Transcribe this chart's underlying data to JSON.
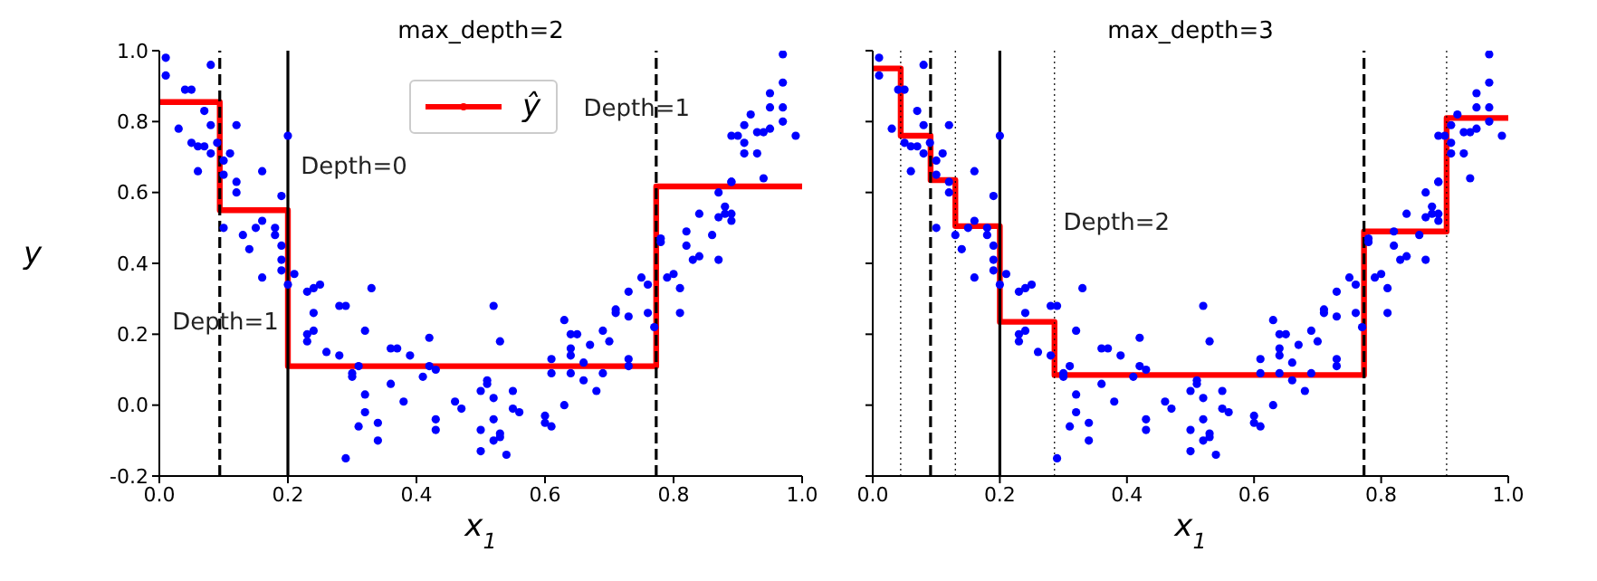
{
  "chart_data": [
    {
      "type": "scatter",
      "title": "max_depth=2",
      "xlabel": "x$_{1}$",
      "ylabel": "y",
      "xlim": [
        0,
        1
      ],
      "xticks": [
        {
          "value": 0,
          "label": "0.0"
        },
        {
          "value": 0.2,
          "label": "0.2"
        },
        {
          "value": 0.4,
          "label": "0.4"
        },
        {
          "value": 0.6,
          "label": "0.6"
        },
        {
          "value": 0.8,
          "label": "0.8"
        },
        {
          "value": 1,
          "label": "1.0"
        }
      ],
      "ylim": [
        -0.2,
        1
      ],
      "yticks": [
        {
          "value": -0.2,
          "label": "-0.2"
        },
        {
          "value": 0,
          "label": "0.0"
        },
        {
          "value": 0.2,
          "label": "0.2"
        },
        {
          "value": 0.4,
          "label": "0.4"
        },
        {
          "value": 0.6,
          "label": "0.6"
        },
        {
          "value": 0.8,
          "label": "0.8"
        },
        {
          "value": 1,
          "label": "1.0"
        }
      ],
      "legend": "top",
      "series": [
        {
          "marker": "circle",
          "color": "#0000ff",
          "x": [
            0.01,
            0.01,
            0.08,
            0.03,
            0.04,
            0.05,
            0.07,
            0.08,
            0.05,
            0.06,
            0.06,
            0.07,
            0.08,
            0.1,
            0.09,
            0.12,
            0.11,
            0.1,
            0.12,
            0.12,
            0.16,
            0.19,
            0.2,
            0.1,
            0.13,
            0.16,
            0.15,
            0.18,
            0.18,
            0.14,
            0.16,
            0.19,
            0.19,
            0.19,
            0.2,
            0.21,
            0.23,
            0.24,
            0.25,
            0.24,
            0.23,
            0.24,
            0.23,
            0.26,
            0.28,
            0.29,
            0.28,
            0.3,
            0.31,
            0.3,
            0.32,
            0.32,
            0.31,
            0.34,
            0.34,
            0.36,
            0.37,
            0.36,
            0.38,
            0.39,
            0.32,
            0.33,
            0.29,
            0.42,
            0.41,
            0.42,
            0.43,
            0.43,
            0.43,
            0.46,
            0.47,
            0.5,
            0.5,
            0.5,
            0.51,
            0.51,
            0.52,
            0.53,
            0.52,
            0.52,
            0.53,
            0.53,
            0.52,
            0.54,
            0.55,
            0.55,
            0.56,
            0.6,
            0.6,
            0.61,
            0.61,
            0.61,
            0.63,
            0.64,
            0.64,
            0.63,
            0.64,
            0.65,
            0.64,
            0.66,
            0.66,
            0.67,
            0.68,
            0.69,
            0.69,
            0.7,
            0.71,
            0.71,
            0.73,
            0.73,
            0.73,
            0.73,
            0.75,
            0.76,
            0.76,
            0.77,
            0.78,
            0.78,
            0.79,
            0.8,
            0.81,
            0.81,
            0.82,
            0.82,
            0.83,
            0.84,
            0.84,
            0.86,
            0.87,
            0.87,
            0.88,
            0.88,
            0.89,
            0.89,
            0.89,
            0.9,
            0.91,
            0.91,
            0.91,
            0.92,
            0.93,
            0.94,
            0.94,
            0.93,
            0.95,
            0.95,
            0.95,
            0.97,
            0.97,
            0.97,
            0.97,
            0.99,
            0.87,
            0.89,
            0.89
          ],
          "values": [
            0.98,
            0.93,
            0.96,
            0.78,
            0.89,
            0.89,
            0.83,
            0.79,
            0.74,
            0.73,
            0.66,
            0.73,
            0.71,
            0.69,
            0.74,
            0.79,
            0.71,
            0.65,
            0.63,
            0.6,
            0.66,
            0.59,
            0.76,
            0.5,
            0.48,
            0.52,
            0.5,
            0.5,
            0.48,
            0.44,
            0.36,
            0.45,
            0.41,
            0.38,
            0.34,
            0.37,
            0.32,
            0.33,
            0.34,
            0.26,
            0.2,
            0.21,
            0.18,
            0.15,
            0.28,
            0.28,
            0.14,
            0.08,
            0.11,
            0.09,
            0.03,
            -0.02,
            -0.06,
            -0.05,
            -0.1,
            0.16,
            0.16,
            0.06,
            0.01,
            0.14,
            0.21,
            0.33,
            -0.15,
            0.19,
            0.08,
            0.11,
            0.1,
            -0.04,
            -0.07,
            0.01,
            -0.01,
            0.04,
            -0.07,
            -0.13,
            0.06,
            0.07,
            0.28,
            0.18,
            0.02,
            -0.04,
            -0.09,
            -0.08,
            -0.1,
            -0.14,
            0.04,
            -0.01,
            -0.02,
            -0.03,
            -0.05,
            -0.06,
            0.09,
            0.13,
            0.0,
            0.14,
            0.09,
            0.24,
            0.2,
            0.2,
            0.16,
            0.07,
            0.12,
            0.17,
            0.04,
            0.09,
            0.21,
            0.18,
            0.26,
            0.27,
            0.13,
            0.11,
            0.25,
            0.32,
            0.36,
            0.34,
            0.26,
            0.22,
            0.46,
            0.47,
            0.36,
            0.37,
            0.33,
            0.26,
            0.49,
            0.45,
            0.41,
            0.42,
            0.54,
            0.48,
            0.53,
            0.41,
            0.56,
            0.54,
            0.52,
            0.54,
            0.76,
            0.76,
            0.74,
            0.71,
            0.79,
            0.82,
            0.77,
            0.77,
            0.64,
            0.71,
            0.78,
            0.84,
            0.88,
            0.91,
            0.8,
            0.84,
            0.99,
            0.76,
            0.6,
            0.63,
            0.63
          ]
        },
        {
          "type": "step",
          "name": "ŷ",
          "marker": "none",
          "color": "#ff0000",
          "x": [
            0,
            0.094,
            0.2,
            0.773,
            1
          ],
          "values": [
            0.855,
            0.55,
            0.11,
            0.617,
            0.617
          ]
        }
      ],
      "ref_lines": [
        {
          "axis": "x",
          "value": 0.2,
          "color": "#000000",
          "line_style": "solid"
        },
        {
          "axis": "x",
          "value": 0.094,
          "color": "#000000",
          "line_style": "dashed"
        },
        {
          "axis": "x",
          "value": 0.773,
          "color": "#000000",
          "line_style": "dashed"
        }
      ],
      "annotations": [
        "Depth=0",
        "Depth=1",
        "Depth=1"
      ]
    },
    {
      "type": "scatter",
      "title": "max_depth=3",
      "xlabel": "x$_{1}$",
      "xlim": [
        0,
        1
      ],
      "xticks": [
        {
          "value": 0,
          "label": "0.0"
        },
        {
          "value": 0.2,
          "label": "0.2"
        },
        {
          "value": 0.4,
          "label": "0.4"
        },
        {
          "value": 0.6,
          "label": "0.6"
        },
        {
          "value": 0.8,
          "label": "0.8"
        },
        {
          "value": 1,
          "label": "1.0"
        }
      ],
      "ylim": [
        -0.2,
        1
      ],
      "yticks": [
        {
          "value": -0.2,
          "label": null
        },
        {
          "value": 0,
          "label": null
        },
        {
          "value": 0.2,
          "label": null
        },
        {
          "value": 0.4,
          "label": null
        },
        {
          "value": 0.6,
          "label": null
        },
        {
          "value": 0.8,
          "label": null
        },
        {
          "value": 1,
          "label": null
        }
      ],
      "tick_labels": "x",
      "series": [
        {
          "marker": "circle",
          "color": "#0000ff",
          "x": [
            0.01,
            0.01,
            0.08,
            0.03,
            0.04,
            0.05,
            0.07,
            0.08,
            0.05,
            0.06,
            0.06,
            0.07,
            0.08,
            0.1,
            0.09,
            0.12,
            0.11,
            0.1,
            0.12,
            0.12,
            0.16,
            0.19,
            0.2,
            0.1,
            0.13,
            0.16,
            0.15,
            0.18,
            0.18,
            0.14,
            0.16,
            0.19,
            0.19,
            0.19,
            0.2,
            0.21,
            0.23,
            0.24,
            0.25,
            0.24,
            0.23,
            0.24,
            0.23,
            0.26,
            0.28,
            0.29,
            0.28,
            0.3,
            0.31,
            0.3,
            0.32,
            0.32,
            0.31,
            0.34,
            0.34,
            0.36,
            0.37,
            0.36,
            0.38,
            0.39,
            0.32,
            0.33,
            0.29,
            0.42,
            0.41,
            0.42,
            0.43,
            0.43,
            0.43,
            0.46,
            0.47,
            0.5,
            0.5,
            0.5,
            0.51,
            0.51,
            0.52,
            0.53,
            0.52,
            0.52,
            0.53,
            0.53,
            0.52,
            0.54,
            0.55,
            0.55,
            0.56,
            0.6,
            0.6,
            0.61,
            0.61,
            0.61,
            0.63,
            0.64,
            0.64,
            0.63,
            0.64,
            0.65,
            0.64,
            0.66,
            0.66,
            0.67,
            0.68,
            0.69,
            0.69,
            0.7,
            0.71,
            0.71,
            0.73,
            0.73,
            0.73,
            0.73,
            0.75,
            0.76,
            0.76,
            0.77,
            0.78,
            0.78,
            0.79,
            0.8,
            0.81,
            0.81,
            0.82,
            0.82,
            0.83,
            0.84,
            0.84,
            0.86,
            0.87,
            0.87,
            0.88,
            0.88,
            0.89,
            0.89,
            0.89,
            0.9,
            0.91,
            0.91,
            0.91,
            0.92,
            0.93,
            0.94,
            0.94,
            0.93,
            0.95,
            0.95,
            0.95,
            0.97,
            0.97,
            0.97,
            0.97,
            0.99,
            0.87,
            0.89,
            0.89
          ],
          "values": [
            0.98,
            0.93,
            0.96,
            0.78,
            0.89,
            0.89,
            0.83,
            0.79,
            0.74,
            0.73,
            0.66,
            0.73,
            0.71,
            0.69,
            0.74,
            0.79,
            0.71,
            0.65,
            0.63,
            0.6,
            0.66,
            0.59,
            0.76,
            0.5,
            0.48,
            0.52,
            0.5,
            0.5,
            0.48,
            0.44,
            0.36,
            0.45,
            0.41,
            0.38,
            0.34,
            0.37,
            0.32,
            0.33,
            0.34,
            0.26,
            0.2,
            0.21,
            0.18,
            0.15,
            0.28,
            0.28,
            0.14,
            0.08,
            0.11,
            0.09,
            0.03,
            -0.02,
            -0.06,
            -0.05,
            -0.1,
            0.16,
            0.16,
            0.06,
            0.01,
            0.14,
            0.21,
            0.33,
            -0.15,
            0.19,
            0.08,
            0.11,
            0.1,
            -0.04,
            -0.07,
            0.01,
            -0.01,
            0.04,
            -0.07,
            -0.13,
            0.06,
            0.07,
            0.28,
            0.18,
            0.02,
            -0.04,
            -0.09,
            -0.08,
            -0.1,
            -0.14,
            0.04,
            -0.01,
            -0.02,
            -0.03,
            -0.05,
            -0.06,
            0.09,
            0.13,
            0.0,
            0.14,
            0.09,
            0.24,
            0.2,
            0.2,
            0.16,
            0.07,
            0.12,
            0.17,
            0.04,
            0.09,
            0.21,
            0.18,
            0.26,
            0.27,
            0.13,
            0.11,
            0.25,
            0.32,
            0.36,
            0.34,
            0.26,
            0.22,
            0.46,
            0.47,
            0.36,
            0.37,
            0.33,
            0.26,
            0.49,
            0.45,
            0.41,
            0.42,
            0.54,
            0.48,
            0.53,
            0.41,
            0.56,
            0.54,
            0.52,
            0.54,
            0.76,
            0.76,
            0.74,
            0.71,
            0.79,
            0.82,
            0.77,
            0.77,
            0.64,
            0.71,
            0.78,
            0.84,
            0.88,
            0.91,
            0.8,
            0.84,
            0.99,
            0.76,
            0.6,
            0.63,
            0.63
          ]
        },
        {
          "type": "step",
          "marker": "none",
          "color": "#ff0000",
          "x": [
            0,
            0.044,
            0.091,
            0.13,
            0.2,
            0.286,
            0.773,
            0.903,
            1
          ],
          "values": [
            0.95,
            0.76,
            0.635,
            0.505,
            0.235,
            0.085,
            0.49,
            0.81,
            0.81
          ]
        }
      ],
      "ref_lines": [
        {
          "axis": "x",
          "value": 0.2,
          "color": "#000000",
          "line_style": "solid"
        },
        {
          "axis": "x",
          "value": 0.091,
          "color": "#000000",
          "line_style": "dashed"
        },
        {
          "axis": "x",
          "value": 0.773,
          "color": "#000000",
          "line_style": "dashed"
        },
        {
          "axis": "x",
          "value": 0.044,
          "color": "#000000",
          "line_style": "dotted"
        },
        {
          "axis": "x",
          "value": 0.13,
          "color": "#000000",
          "line_style": "dotted"
        },
        {
          "axis": "x",
          "value": 0.286,
          "color": "#000000",
          "line_style": "dotted"
        },
        {
          "axis": "x",
          "value": 0.903,
          "color": "#000000",
          "line_style": "dotted"
        }
      ],
      "annotations": [
        "Depth=2"
      ]
    }
  ]
}
